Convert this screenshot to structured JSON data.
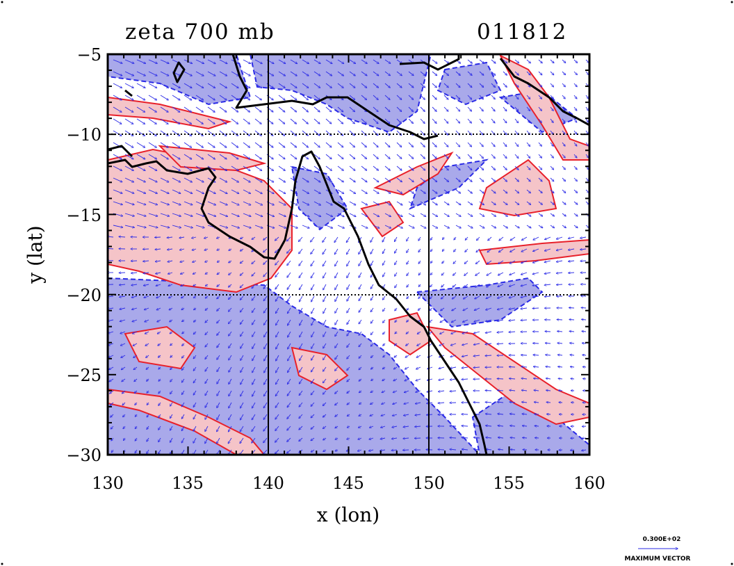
{
  "map": {
    "title_left": "zeta 700 mb",
    "title_right": "011812",
    "xlabel": "x (lon)",
    "ylabel": "y (lat)",
    "x_ticks": [
      "130",
      "135",
      "140",
      "145",
      "150",
      "155",
      "160"
    ],
    "y_ticks": [
      "−5",
      "−10",
      "−15",
      "−20",
      "−25",
      "−30"
    ],
    "lon_range": [
      130,
      160
    ],
    "lat_range": [
      -30,
      -5
    ],
    "grid_lons": [
      140,
      150
    ],
    "grid_lats": [
      -10,
      -20
    ],
    "colors": {
      "positive_fill": "#f5c4c8",
      "positive_line": "#e8202a",
      "negative_fill": "#a9a9ea",
      "negative_line": "#2a2ae6",
      "vector": "#2a2ae6",
      "coast": "#000000"
    },
    "legend": {
      "magnitude": "0.300E+02",
      "label": "MAXIMUM VECTOR"
    }
  }
}
